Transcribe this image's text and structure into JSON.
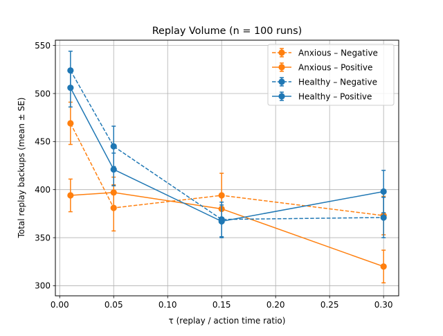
{
  "chart_data": {
    "type": "line",
    "title": "Replay Volume  (n = 100 runs)",
    "xlabel": "τ  (replay / action time ratio)",
    "ylabel": "Total replay backups  (mean ± SE)",
    "xlim": [
      -0.004,
      0.314
    ],
    "ylim": [
      289.5,
      555.5
    ],
    "x_ticks": [
      0.0,
      0.05,
      0.1,
      0.15,
      0.2,
      0.25,
      0.3
    ],
    "x_tick_labels": [
      "0.00",
      "0.05",
      "0.10",
      "0.15",
      "0.20",
      "0.25",
      "0.30"
    ],
    "y_ticks": [
      300,
      350,
      400,
      450,
      500,
      550
    ],
    "y_tick_labels": [
      "300",
      "350",
      "400",
      "450",
      "500",
      "550"
    ],
    "grid": true,
    "legend_position": "top-right",
    "x": [
      0.01,
      0.05,
      0.15,
      0.3
    ],
    "series": [
      {
        "name": "Anxious – Negative",
        "color": "#ff7f0e",
        "linestyle": "dashed",
        "marker": "circle",
        "values": [
          469,
          381,
          394,
          373
        ],
        "errors": [
          22,
          24,
          23,
          20
        ]
      },
      {
        "name": "Anxious – Positive",
        "color": "#ff7f0e",
        "linestyle": "solid",
        "marker": "circle",
        "values": [
          394,
          397,
          380,
          320
        ],
        "errors": [
          17,
          16,
          15,
          17
        ]
      },
      {
        "name": "Healthy – Negative",
        "color": "#1f77b4",
        "linestyle": "dashed",
        "marker": "circle",
        "values": [
          524,
          445,
          369,
          371
        ],
        "errors": [
          20,
          21,
          18,
          21
        ]
      },
      {
        "name": "Healthy – Positive",
        "color": "#1f77b4",
        "linestyle": "solid",
        "marker": "circle",
        "values": [
          506,
          421,
          367,
          398
        ],
        "errors": [
          20,
          17,
          17,
          22
        ]
      }
    ]
  }
}
